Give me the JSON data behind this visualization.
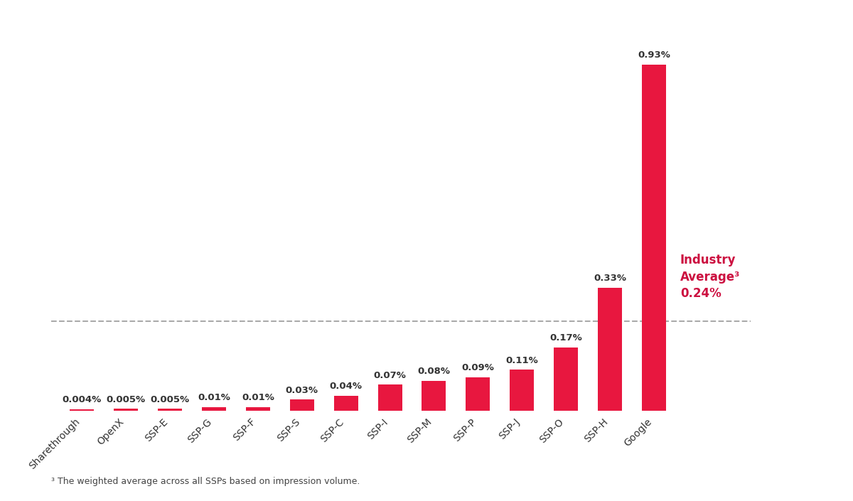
{
  "categories": [
    "Sharethrough",
    "OpenX",
    "SSP-E",
    "SSP-G",
    "SSP-F",
    "SSP-S",
    "SSP-C",
    "SSP-I",
    "SSP-M",
    "SSP-P",
    "SSP-J",
    "SSP-O",
    "SSP-H",
    "Google"
  ],
  "values": [
    0.004,
    0.005,
    0.005,
    0.01,
    0.01,
    0.03,
    0.04,
    0.07,
    0.08,
    0.09,
    0.11,
    0.17,
    0.33,
    0.93
  ],
  "labels": [
    "0.004%",
    "0.005%",
    "0.005%",
    "0.01%",
    "0.01%",
    "0.03%",
    "0.04%",
    "0.07%",
    "0.08%",
    "0.09%",
    "0.11%",
    "0.17%",
    "0.33%",
    "0.93%"
  ],
  "bar_color": "#E8173F",
  "industry_avg": 0.24,
  "industry_avg_label_line1": "Industry",
  "industry_avg_label_line2": "Average³",
  "industry_avg_label_line3": "0.24%",
  "footnote": "³ The weighted average across all SSPs based on impression volume.",
  "background_color": "#ffffff",
  "dashed_line_color": "#aaaaaa",
  "label_color": "#333333",
  "industry_label_color": "#CC1040",
  "ylim": [
    0,
    1.05
  ],
  "bar_width": 0.55
}
